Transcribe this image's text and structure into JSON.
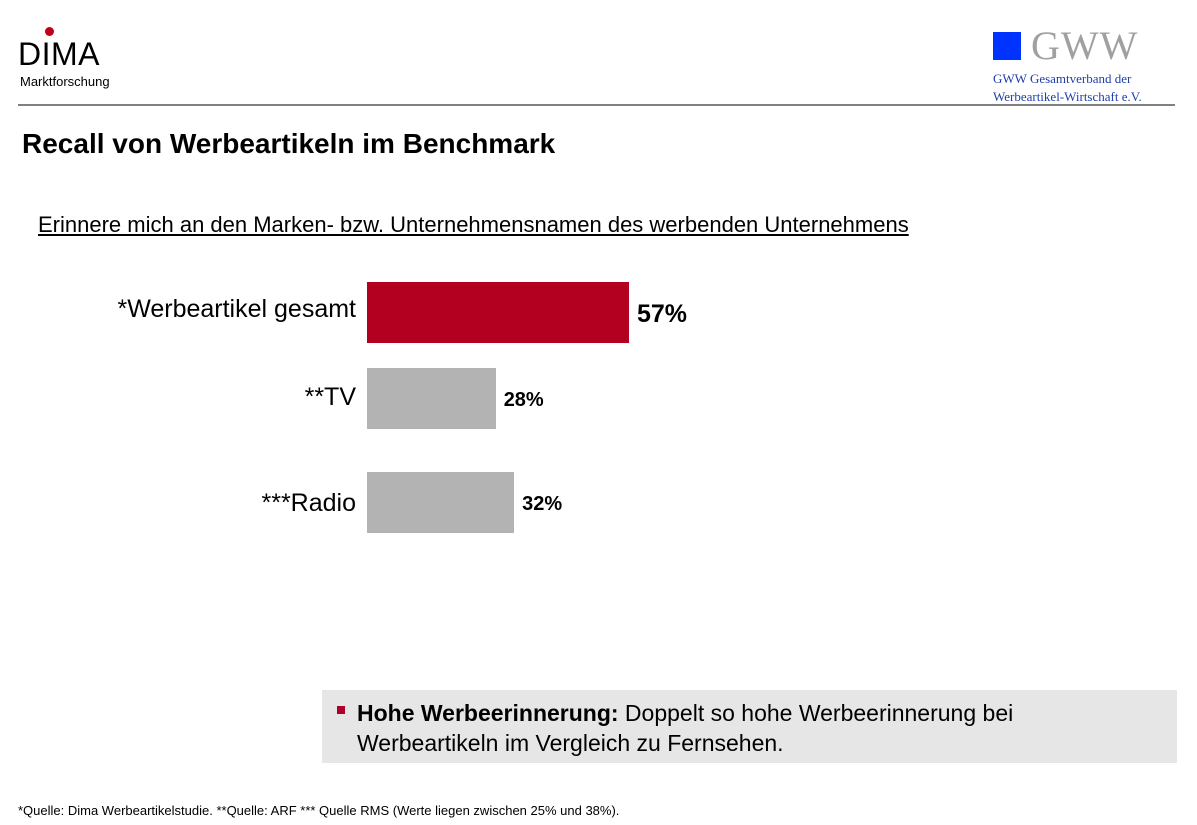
{
  "header": {
    "dima": {
      "word": "DIMA",
      "sub": "Marktforschung"
    },
    "gww": {
      "word": "GWW",
      "line1": "GWW Gesamtverband der",
      "line2": "Werbeartikel-Wirtschaft e.V."
    }
  },
  "title": "Recall von Werbeartikeln im Benchmark",
  "chart_data": {
    "type": "bar",
    "orientation": "horizontal",
    "title": "Erinnere mich an den Marken- bzw. Unternehmensnamen des werbenden Unternehmens",
    "categories": [
      "*Werbeartikel gesamt",
      "**TV",
      "***Radio"
    ],
    "values": [
      57,
      28,
      32
    ],
    "value_labels": [
      "57%",
      "28%",
      "32%"
    ],
    "colors": [
      "#b30021",
      "#b3b3b3",
      "#b3b3b3"
    ],
    "unit": "%",
    "xlim": [
      0,
      100
    ],
    "grid": false,
    "legend": "none"
  },
  "note": {
    "bold": "Hohe Werbeerinnerung:",
    "text": " Doppelt so hohe Werbeerinnerung bei Werbeartikeln im Vergleich zu Fernsehen."
  },
  "footer": "*Quelle: Dima Werbeartikelstudie.  **Quelle: ARF *** Quelle RMS (Werte liegen zwischen 25% und 38%)."
}
